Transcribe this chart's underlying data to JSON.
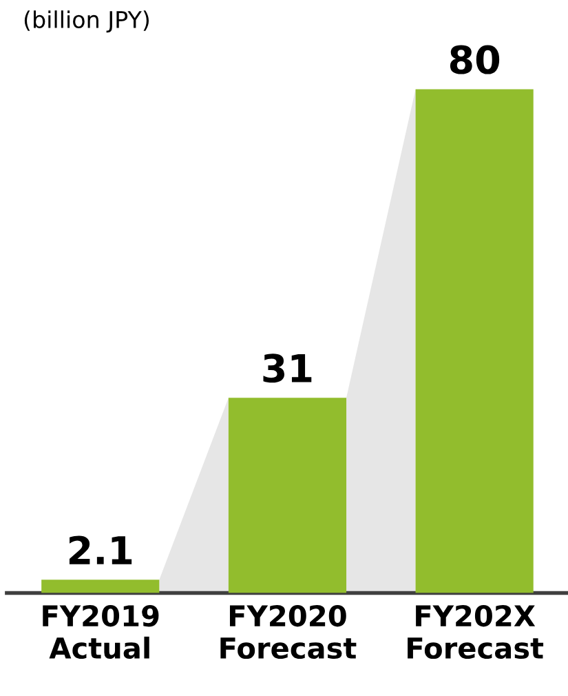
{
  "chart_data": {
    "type": "bar",
    "subtitle": "(billion JPY)",
    "categories": [
      "FY2019\nActual",
      "FY2020\nForecast",
      "FY202X\nForecast"
    ],
    "values": [
      2.1,
      31,
      80
    ],
    "color": "#92bd2d",
    "data_labels": true,
    "grid": false,
    "legend": false
  }
}
